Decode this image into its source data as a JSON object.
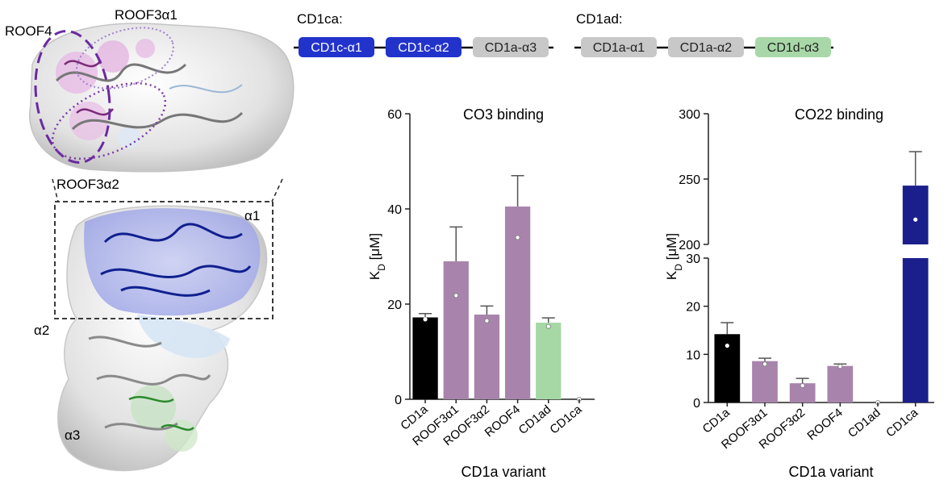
{
  "structure": {
    "labels": {
      "roof4": "ROOF4",
      "roof3a1": "ROOF3α1",
      "roof3a2": "ROOF3α2",
      "a1": "α1",
      "a2": "α2",
      "a3": "α3"
    }
  },
  "constructs": {
    "cd1ca": {
      "title": "CD1ca:",
      "domains": [
        {
          "label": "CD1c-α1",
          "color": "#2233cc",
          "text_color": "#ffffff"
        },
        {
          "label": "CD1c-α2",
          "color": "#2233cc",
          "text_color": "#ffffff"
        },
        {
          "label": "CD1a-α3",
          "color": "#c8c8c8",
          "text_color": "#222222"
        }
      ]
    },
    "cd1ad": {
      "title": "CD1ad:",
      "domains": [
        {
          "label": "CD1a-α1",
          "color": "#c8c8c8",
          "text_color": "#222222"
        },
        {
          "label": "CD1a-α2",
          "color": "#c8c8c8",
          "text_color": "#222222"
        },
        {
          "label": "CD1d-α3",
          "color": "#a8d8a8",
          "text_color": "#222222"
        }
      ]
    }
  },
  "chart_data": [
    {
      "type": "bar",
      "title": "CO3 binding",
      "xlabel": "CD1a variant",
      "ylabel": "K_D [μM]",
      "ylim": [
        0,
        60
      ],
      "yticks": [
        0,
        20,
        40,
        60
      ],
      "categories": [
        "CD1a",
        "ROOF3α1",
        "ROOF3α2",
        "ROOF4",
        "CD1ad",
        "CD1ca"
      ],
      "values": [
        17.2,
        29,
        17.8,
        40.5,
        16.1,
        0
      ],
      "errors": [
        0.8,
        7.2,
        1.8,
        6.5,
        1.0,
        0
      ],
      "points": [
        16.8,
        21.8,
        16.5,
        34,
        15.3,
        0
      ],
      "colors": [
        "#000000",
        "#a884ad",
        "#a884ad",
        "#a884ad",
        "#a6d8a6",
        "#a6d8a6"
      ],
      "grid": false
    },
    {
      "type": "bar",
      "title": "CO22 binding",
      "xlabel": "CD1a variant",
      "ylabel": "K_D [μM]",
      "ylim_lower": [
        0,
        30
      ],
      "ylim_upper": [
        200,
        300
      ],
      "yticks_lower": [
        0,
        10,
        20,
        30
      ],
      "yticks_upper": [
        200,
        250,
        300
      ],
      "broken_axis": true,
      "categories": [
        "CD1a",
        "ROOF3α1",
        "ROOF3α2",
        "ROOF4",
        "CD1ad",
        "CD1ca"
      ],
      "values": [
        14.2,
        8.6,
        4.0,
        7.6,
        0,
        245
      ],
      "errors": [
        2.4,
        0.6,
        1.0,
        0.4,
        0,
        26
      ],
      "points": [
        11.8,
        8.0,
        3.5,
        7.5,
        0,
        219
      ],
      "colors": [
        "#000000",
        "#a884ad",
        "#a884ad",
        "#a884ad",
        "#a884ad",
        "#1a1f8c"
      ],
      "grid": false
    }
  ]
}
